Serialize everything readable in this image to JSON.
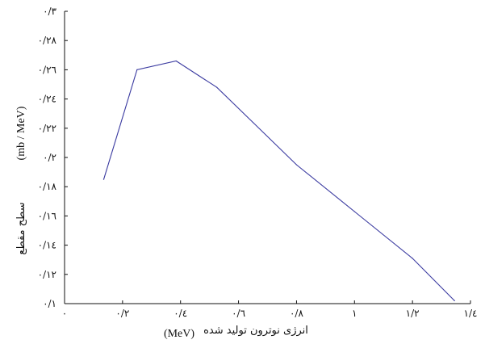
{
  "chart_data": {
    "type": "line",
    "title": "",
    "xlabel": "انرژی نوترون تولید شده",
    "xlabel_unit": "(MeV)",
    "ylabel": "سطح مقطع",
    "ylabel_unit": "(mb / MeV)",
    "xlim": [
      0,
      1.4
    ],
    "ylim": [
      0.1,
      0.3
    ],
    "x_ticks": [
      {
        "value": 0,
        "label": "۰"
      },
      {
        "value": 0.2,
        "label": "۰/۲"
      },
      {
        "value": 0.4,
        "label": "۰/٤"
      },
      {
        "value": 0.6,
        "label": "۰/٦"
      },
      {
        "value": 0.8,
        "label": "۰/۸"
      },
      {
        "value": 1.0,
        "label": "۱"
      },
      {
        "value": 1.2,
        "label": "۱/۲"
      },
      {
        "value": 1.4,
        "label": "۱/٤"
      }
    ],
    "y_ticks": [
      {
        "value": 0.1,
        "label": "۰/۱"
      },
      {
        "value": 0.12,
        "label": "۰/۱۲"
      },
      {
        "value": 0.14,
        "label": "۰/۱٤"
      },
      {
        "value": 0.16,
        "label": "۰/۱٦"
      },
      {
        "value": 0.18,
        "label": "۰/۱۸"
      },
      {
        "value": 0.2,
        "label": "۰/۲"
      },
      {
        "value": 0.22,
        "label": "۰/۲۲"
      },
      {
        "value": 0.24,
        "label": "۰/۲٤"
      },
      {
        "value": 0.26,
        "label": "۰/۲٦"
      },
      {
        "value": 0.28,
        "label": "۰/۲۸"
      },
      {
        "value": 0.3,
        "label": "۰/۳"
      }
    ],
    "grid": false,
    "series": [
      {
        "color": "#3a3aa0",
        "x": [
          0.135,
          0.25,
          0.385,
          0.525,
          0.65,
          0.8,
          1.0,
          1.2,
          1.345
        ],
        "y": [
          0.185,
          0.26,
          0.266,
          0.248,
          0.224,
          0.195,
          0.163,
          0.131,
          0.102
        ]
      }
    ]
  }
}
